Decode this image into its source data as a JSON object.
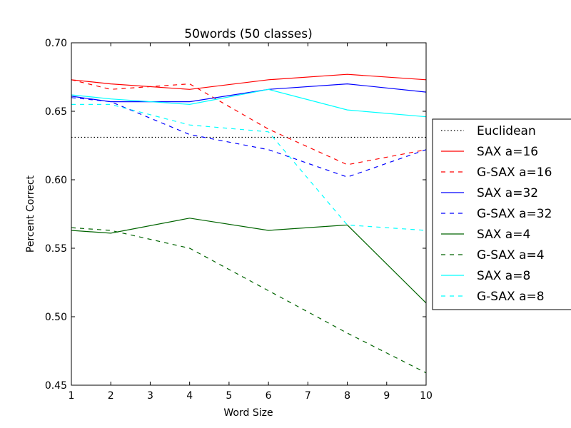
{
  "chart_data": {
    "type": "line",
    "title": "50words (50 classes)",
    "xlabel": "Word Size",
    "ylabel": "Percent Correct",
    "xlim": [
      1,
      10
    ],
    "ylim": [
      0.45,
      0.7
    ],
    "xticks": [
      "1",
      "2",
      "3",
      "4",
      "5",
      "6",
      "7",
      "8",
      "9",
      "10"
    ],
    "yticks": [
      "0.45",
      "0.50",
      "0.55",
      "0.60",
      "0.65",
      "0.70"
    ],
    "grid": false,
    "legend_position": "right-outside",
    "series": [
      {
        "name": "Euclidean",
        "color": "#000000",
        "style": "dotted",
        "x": [
          1,
          10
        ],
        "y": [
          0.631,
          0.631
        ]
      },
      {
        "name": "SAX a=16",
        "color": "#ff0000",
        "style": "solid",
        "x": [
          1,
          2,
          4,
          6,
          8,
          10
        ],
        "y": [
          0.673,
          0.67,
          0.666,
          0.673,
          0.677,
          0.673
        ]
      },
      {
        "name": "G-SAX a=16",
        "color": "#ff0000",
        "style": "dashed",
        "x": [
          1,
          2,
          4,
          6,
          8,
          10
        ],
        "y": [
          0.673,
          0.666,
          0.67,
          0.637,
          0.611,
          0.622
        ]
      },
      {
        "name": "SAX a=32",
        "color": "#0000ff",
        "style": "solid",
        "x": [
          1,
          2,
          4,
          6,
          8,
          10
        ],
        "y": [
          0.661,
          0.657,
          0.657,
          0.666,
          0.67,
          0.664
        ]
      },
      {
        "name": "G-SAX a=32",
        "color": "#0000ff",
        "style": "dashed",
        "x": [
          1,
          2,
          4,
          6,
          8,
          10
        ],
        "y": [
          0.66,
          0.657,
          0.633,
          0.622,
          0.602,
          0.622
        ]
      },
      {
        "name": "SAX a=4",
        "color": "#006400",
        "style": "solid",
        "x": [
          1,
          2,
          4,
          6,
          8,
          10
        ],
        "y": [
          0.563,
          0.561,
          0.572,
          0.563,
          0.567,
          0.51
        ]
      },
      {
        "name": "G-SAX a=4",
        "color": "#006400",
        "style": "dashed",
        "x": [
          1,
          2,
          4,
          6,
          8,
          10
        ],
        "y": [
          0.565,
          0.563,
          0.55,
          0.519,
          0.488,
          0.459
        ]
      },
      {
        "name": "SAX a=8",
        "color": "#00ffff",
        "style": "solid",
        "x": [
          1,
          2,
          4,
          6,
          8,
          10
        ],
        "y": [
          0.662,
          0.659,
          0.655,
          0.666,
          0.651,
          0.646
        ]
      },
      {
        "name": "G-SAX a=8",
        "color": "#00ffff",
        "style": "dashed",
        "x": [
          1,
          2,
          4,
          6,
          8,
          10
        ],
        "y": [
          0.655,
          0.655,
          0.64,
          0.635,
          0.567,
          0.563
        ]
      }
    ]
  }
}
